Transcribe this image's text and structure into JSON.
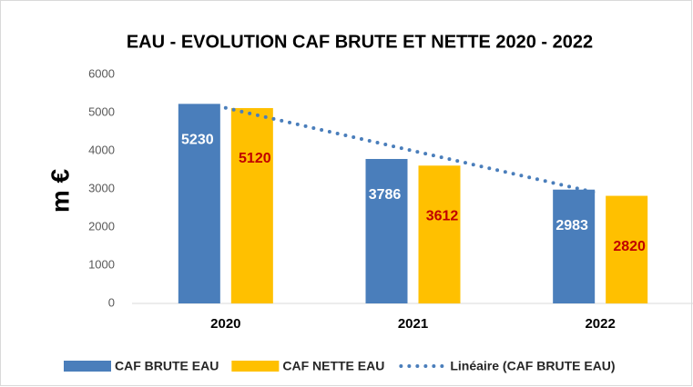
{
  "chart_data": {
    "type": "bar",
    "title": "EAU - EVOLUTION CAF BRUTE ET NETTE 2020 - 2022",
    "y_label": "m €",
    "categories": [
      "2020",
      "2021",
      "2022"
    ],
    "series": [
      {
        "name": "CAF BRUTE EAU",
        "color": "#4a7ebb",
        "label_color": "#ffffff",
        "values": [
          5230,
          3786,
          2983
        ]
      },
      {
        "name": "CAF NETTE EAU",
        "color": "#ffc000",
        "label_color": "#c00000",
        "values": [
          5120,
          3612,
          2820
        ]
      },
      {
        "name": "Linéaire (CAF BRUTE EAU)",
        "type": "line",
        "style": "dotted",
        "color": "#4a7ebb",
        "values": [
          5124,
          4000,
          2877
        ]
      }
    ],
    "ylim": [
      0,
      6000
    ],
    "yticks": [
      0,
      1000,
      2000,
      3000,
      4000,
      5000,
      6000
    ],
    "grid": false
  }
}
